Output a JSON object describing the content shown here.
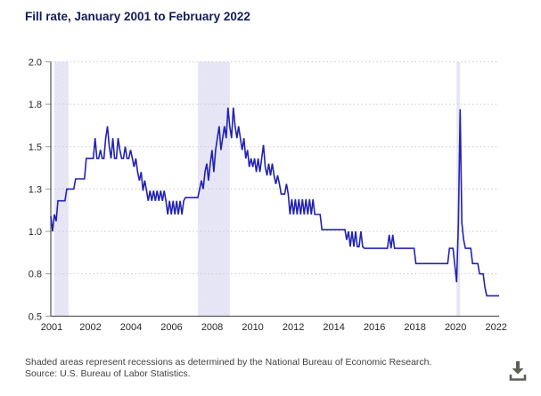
{
  "page": {
    "title": "Fill rate, January 2001 to February 2022"
  },
  "footnotes": {
    "line1": "Shaded areas represent recessions as determined by the National Bureau of Economic Research.",
    "line2": "Source: U.S. Bureau of Labor Statistics."
  },
  "icons": {
    "download": "download-icon"
  },
  "colors": {
    "title_text": "#141c5a",
    "line": "#2222b2",
    "recession_band": "#dedef2",
    "recession_band_light": "#ededf9",
    "gridline": "#c9c9c9",
    "axis_line": "#55555a",
    "tick_mark": "#9a9aa0",
    "axis_text": "#262626",
    "footnote_text": "#3f3f41",
    "download_icon": "#5f5f55"
  },
  "chart_data": {
    "type": "line",
    "title": "Fill rate, January 2001 to February 2022",
    "frequency": "monthly",
    "x_start": "2001-01",
    "x_end": "2022-02",
    "ylim": [
      0.5,
      2.0
    ],
    "grid": "dotted-horizontal",
    "legend": "none",
    "xlabel": "",
    "ylabel": "",
    "y_ticks": [
      {
        "label": "2.0",
        "value": 2.0
      },
      {
        "label": "1.8",
        "value": 1.75
      },
      {
        "label": "1.5",
        "value": 1.5
      },
      {
        "label": "1.3",
        "value": 1.25
      },
      {
        "label": "1.0",
        "value": 1.0
      },
      {
        "label": "0.8",
        "value": 0.75
      },
      {
        "label": "0.5",
        "value": 0.5
      }
    ],
    "x_tick_labels": [
      "2001",
      "2002",
      "2004",
      "2006",
      "2008",
      "2010",
      "2012",
      "2014",
      "2016",
      "2018",
      "2020",
      "2022"
    ],
    "recessions": [
      {
        "start": "2001-03",
        "end": "2001-11"
      },
      {
        "start": "2007-12",
        "end": "2009-06"
      },
      {
        "start": "2020-02",
        "end": "2020-04"
      }
    ],
    "values": [
      1.09,
      1.0,
      1.1,
      1.06,
      1.18,
      1.18,
      1.18,
      1.18,
      1.18,
      1.25,
      1.25,
      1.25,
      1.25,
      1.25,
      1.31,
      1.31,
      1.31,
      1.31,
      1.31,
      1.31,
      1.43,
      1.43,
      1.43,
      1.43,
      1.43,
      1.55,
      1.43,
      1.43,
      1.48,
      1.43,
      1.43,
      1.55,
      1.62,
      1.5,
      1.43,
      1.55,
      1.43,
      1.43,
      1.55,
      1.48,
      1.43,
      1.43,
      1.5,
      1.43,
      1.43,
      1.48,
      1.43,
      1.38,
      1.43,
      1.35,
      1.3,
      1.35,
      1.24,
      1.3,
      1.24,
      1.18,
      1.24,
      1.18,
      1.24,
      1.18,
      1.24,
      1.18,
      1.24,
      1.18,
      1.24,
      1.18,
      1.1,
      1.18,
      1.1,
      1.18,
      1.1,
      1.18,
      1.1,
      1.18,
      1.1,
      1.18,
      1.2,
      1.2,
      1.2,
      1.2,
      1.2,
      1.2,
      1.2,
      1.2,
      1.25,
      1.3,
      1.25,
      1.35,
      1.4,
      1.3,
      1.4,
      1.48,
      1.35,
      1.48,
      1.55,
      1.62,
      1.48,
      1.55,
      1.62,
      1.55,
      1.73,
      1.62,
      1.55,
      1.73,
      1.62,
      1.55,
      1.62,
      1.55,
      1.48,
      1.55,
      1.43,
      1.48,
      1.38,
      1.43,
      1.38,
      1.43,
      1.35,
      1.43,
      1.35,
      1.43,
      1.51,
      1.38,
      1.33,
      1.4,
      1.33,
      1.4,
      1.33,
      1.28,
      1.33,
      1.28,
      1.22,
      1.22,
      1.22,
      1.28,
      1.22,
      1.1,
      1.19,
      1.1,
      1.19,
      1.1,
      1.19,
      1.1,
      1.19,
      1.1,
      1.19,
      1.1,
      1.19,
      1.1,
      1.19,
      1.1,
      1.1,
      1.1,
      1.1,
      1.01,
      1.01,
      1.01,
      1.01,
      1.01,
      1.01,
      1.01,
      1.01,
      1.01,
      1.01,
      1.01,
      1.01,
      1.01,
      1.01,
      0.95,
      1.0,
      0.91,
      1.0,
      0.91,
      1.0,
      0.91,
      0.91,
      1.0,
      0.91,
      0.9,
      0.9,
      0.9,
      0.9,
      0.9,
      0.9,
      0.9,
      0.9,
      0.9,
      0.9,
      0.9,
      0.9,
      0.9,
      0.9,
      0.98,
      0.9,
      0.98,
      0.9,
      0.9,
      0.9,
      0.9,
      0.9,
      0.9,
      0.9,
      0.9,
      0.9,
      0.9,
      0.9,
      0.9,
      0.81,
      0.81,
      0.81,
      0.81,
      0.81,
      0.81,
      0.81,
      0.81,
      0.81,
      0.81,
      0.81,
      0.81,
      0.81,
      0.81,
      0.81,
      0.81,
      0.81,
      0.81,
      0.81,
      0.9,
      0.9,
      0.9,
      0.8,
      0.7,
      1.05,
      1.72,
      1.05,
      0.95,
      0.9,
      0.9,
      0.9,
      0.9,
      0.81,
      0.81,
      0.81,
      0.81,
      0.75,
      0.75,
      0.75,
      0.67,
      0.62,
      0.62,
      0.62,
      0.62,
      0.62,
      0.62,
      0.62,
      0.62
    ]
  }
}
